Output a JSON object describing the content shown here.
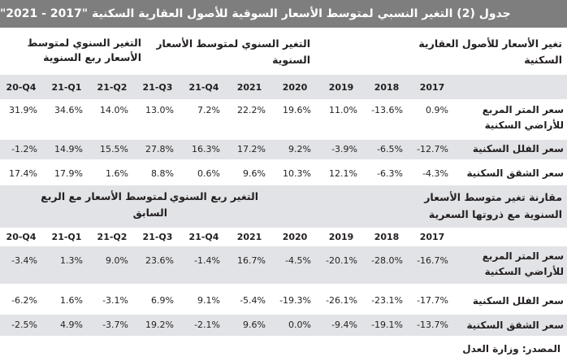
{
  "title": "جدول (2) التغير النسبي لمتوسط الأسعار السوقية للأصول العقارية السكنية \"2017 - 2021\"",
  "top": {
    "headers": {
      "right": "تغير الأسعار للأصول العقارية السكنية",
      "middle": "التغير السنوي لمتوسط الأسعار السنوية",
      "left": "التغير السنوي لمتوسط الأسعار ربع السنوية"
    },
    "columns": [
      "2017",
      "2018",
      "2019",
      "2020",
      "2021",
      "21-Q4",
      "21-Q3",
      "21-Q2",
      "21-Q1",
      "20-Q4"
    ],
    "rows": [
      {
        "label": "سعر المتر المربع للأراضي السكنية",
        "values": [
          "0.9%",
          "-13.6%",
          "11.0%",
          "19.6%",
          "22.2%",
          "7.2%",
          "13.0%",
          "14.0%",
          "34.6%",
          "31.9%"
        ]
      },
      {
        "label": "سعر الفلل السكنية",
        "values": [
          "-12.7%",
          "-6.5%",
          "-3.9%",
          "9.2%",
          "17.2%",
          "16.3%",
          "27.8%",
          "15.5%",
          "14.9%",
          "-1.2%"
        ]
      },
      {
        "label": "سعر الشقق السكنية",
        "values": [
          "-4.3%",
          "-6.3%",
          "12.1%",
          "10.3%",
          "9.6%",
          "0.6%",
          "8.8%",
          "1.6%",
          "17.9%",
          "17.4%"
        ]
      }
    ]
  },
  "bottom": {
    "headers": {
      "right": "مقارنة تغير متوسط الأسعار السنوية مع ذروتها السعرية",
      "middle": "التغير ربع السنوي",
      "left": "لمتوسط الأسعار مع الربع السابق"
    },
    "columns": [
      "2017",
      "2018",
      "2019",
      "2020",
      "2021",
      "21-Q4",
      "21-Q3",
      "21-Q2",
      "21-Q1",
      "20-Q4"
    ],
    "rows": [
      {
        "label": "سعر المتر المربع للأراضي السكنية",
        "values": [
          "-16.7%",
          "-28.0%",
          "-20.1%",
          "-4.5%",
          "16.7%",
          "-1.4%",
          "23.6%",
          "9.0%",
          "1.3%",
          "-3.4%"
        ]
      },
      {
        "label": "سعر الفلل السكنية",
        "values": [
          "-17.7%",
          "-23.1%",
          "-26.1%",
          "-19.3%",
          "-5.4%",
          "9.1%",
          "6.9%",
          "-3.1%",
          "1.6%",
          "-6.2%"
        ]
      },
      {
        "label": "سعر الشقق السكنية",
        "values": [
          "-13.7%",
          "-19.1%",
          "-9.4%",
          "0.0%",
          "9.6%",
          "-2.1%",
          "19.2%",
          "-3.7%",
          "4.9%",
          "-2.5%"
        ]
      }
    ]
  },
  "source": "المصدر: وزارة العدل"
}
